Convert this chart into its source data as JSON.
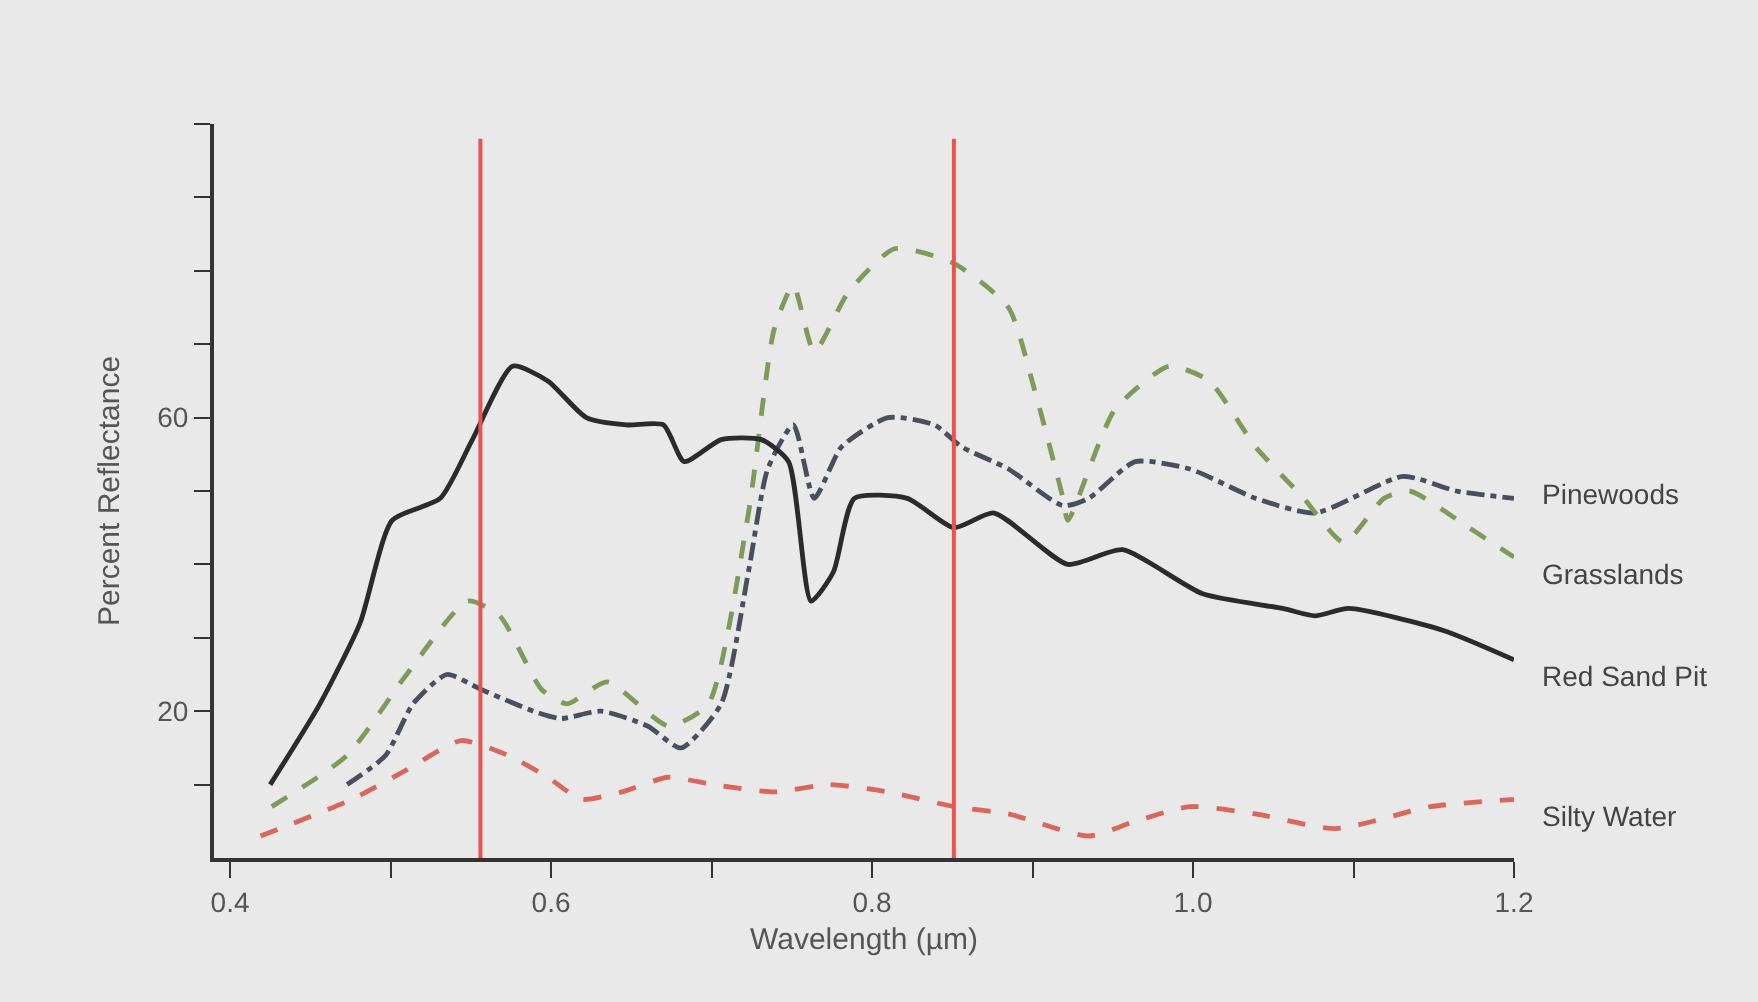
{
  "chart_data": {
    "type": "line",
    "xlabel": "Wavelength (µm)",
    "ylabel": "Percent Reflectance",
    "xlim": [
      0.39,
      1.2
    ],
    "xticks": [
      0.4,
      {
        "value": 0.5,
        "label": null
      },
      0.6,
      {
        "value": 0.7,
        "label": null
      },
      0.8,
      {
        "value": 0.9,
        "label": null
      },
      {
        "value": 1.0,
        "label": "1.0"
      },
      {
        "value": 1.1,
        "label": null
      },
      1.2
    ],
    "ylim": [
      0,
      100
    ],
    "yticks": [
      {
        "value": 10,
        "label": null
      },
      20,
      {
        "value": 30,
        "label": null
      },
      {
        "value": 40,
        "label": null
      },
      {
        "value": 50,
        "label": null
      },
      60,
      {
        "value": 70,
        "label": null
      },
      {
        "value": 80,
        "label": null
      },
      {
        "value": 90,
        "label": null
      },
      {
        "value": 100,
        "label": null
      }
    ],
    "grid": false,
    "legend": false,
    "marker": "none",
    "ref_lines": [
      {
        "axis": "x",
        "value": 0.556,
        "color": "#e8554e",
        "line_style": "solid"
      },
      {
        "axis": "x",
        "value": 0.851,
        "color": "#e8554e",
        "line_style": "solid"
      }
    ],
    "series": [
      {
        "name": "Pinewoods",
        "color": "#4a4f5e",
        "line_style": "dashdot",
        "x": [
          0.473,
          0.497,
          0.514,
          0.535,
          0.556,
          0.589,
          0.606,
          0.631,
          0.66,
          0.681,
          0.706,
          0.723,
          0.735,
          0.751,
          0.764,
          0.781,
          0.81,
          0.839,
          0.856,
          0.885,
          0.919,
          0.935,
          0.964,
          0.998,
          1.039,
          1.076,
          1.131,
          1.164,
          1.2
        ],
        "values": [
          10,
          14,
          21,
          25,
          23,
          20,
          19,
          20,
          18,
          15,
          21,
          39,
          53,
          59,
          49,
          56,
          60,
          59,
          56,
          53,
          48,
          49,
          54,
          53,
          49,
          47,
          52,
          50,
          49
        ]
      },
      {
        "name": "Grasslands",
        "color": "#7f9a5a",
        "line_style": "dashed",
        "x": [
          0.426,
          0.473,
          0.51,
          0.548,
          0.568,
          0.594,
          0.61,
          0.635,
          0.673,
          0.698,
          0.723,
          0.739,
          0.751,
          0.764,
          0.785,
          0.814,
          0.851,
          0.885,
          0.901,
          0.919,
          0.922,
          0.951,
          0.985,
          1.01,
          1.039,
          1.069,
          1.094,
          1.119,
          1.135,
          1.172,
          1.2
        ],
        "values": [
          7,
          14,
          25,
          35,
          33,
          23,
          21,
          24,
          18,
          21,
          47,
          72,
          78,
          69,
          77,
          83,
          81,
          75,
          64,
          49,
          46,
          61,
          67,
          65,
          56,
          49,
          43,
          49,
          50,
          45,
          41
        ]
      },
      {
        "name": "Red Sand Pit",
        "color": "#2b2b2b",
        "line_style": "solid",
        "x": [
          0.425,
          0.456,
          0.481,
          0.501,
          0.531,
          0.551,
          0.576,
          0.598,
          0.622,
          0.647,
          0.67,
          0.683,
          0.706,
          0.731,
          0.748,
          0.762,
          0.776,
          0.789,
          0.822,
          0.851,
          0.876,
          0.922,
          0.956,
          1.006,
          1.056,
          1.076,
          1.097,
          1.156,
          1.2
        ],
        "values": [
          10,
          21,
          32,
          46,
          49,
          57,
          67,
          65,
          60,
          59,
          59,
          54,
          57,
          57,
          54,
          35,
          39,
          49,
          49,
          45,
          47,
          40,
          42,
          36,
          34,
          33,
          34,
          31,
          27
        ]
      },
      {
        "name": "Silty Water",
        "color": "#d9675c",
        "line_style": "dashed",
        "x": [
          0.419,
          0.476,
          0.51,
          0.544,
          0.573,
          0.598,
          0.619,
          0.644,
          0.673,
          0.701,
          0.739,
          0.773,
          0.81,
          0.851,
          0.885,
          0.935,
          0.964,
          0.998,
          1.039,
          1.089,
          1.148,
          1.2
        ],
        "values": [
          3,
          8,
          12,
          16,
          14,
          11,
          8,
          9,
          11,
          10,
          9,
          10,
          9,
          7,
          6,
          3,
          5,
          7,
          6,
          4,
          7,
          8
        ]
      }
    ]
  }
}
